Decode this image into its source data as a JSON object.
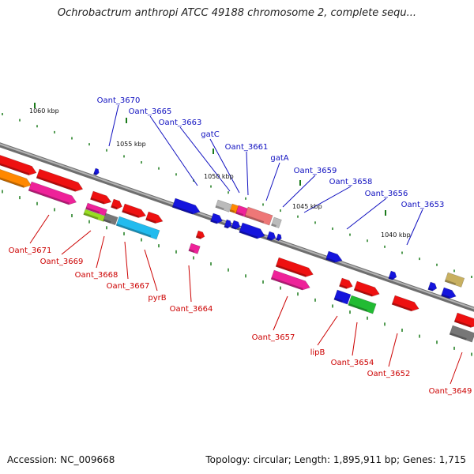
{
  "title": "Ochrobactrum anthropi ATCC 49188 chromosome 2, complete sequ...",
  "footer": {
    "accession": "Accession: NC_009668",
    "summary": "Topology: circular; Length: 1,895,911 bp; Genes: 1,715"
  },
  "kbp_labels": [
    "1060 kbp",
    "1055 kbp",
    "1050 kbp",
    "1045 kbp",
    "1040 kbp"
  ],
  "top_labels": [
    "Oant_3670",
    "Oant_3665",
    "Oant_3663",
    "gatC",
    "Oant_3661",
    "gatA",
    "Oant_3659",
    "Oant_3658",
    "Oant_3656",
    "Oant_3653"
  ],
  "bottom_labels": [
    "Oant_3671",
    "Oant_3669",
    "Oant_3668",
    "Oant_3667",
    "pyrB",
    "Oant_3664",
    "Oant_3657",
    "lipB",
    "Oant_3654",
    "Oant_3652",
    "Oant_3649"
  ],
  "colors": {
    "top_label": "#1010c0",
    "bottom_label": "#cc0000",
    "backbone": "#8c8c8c",
    "tick": "#1a7a1a"
  }
}
